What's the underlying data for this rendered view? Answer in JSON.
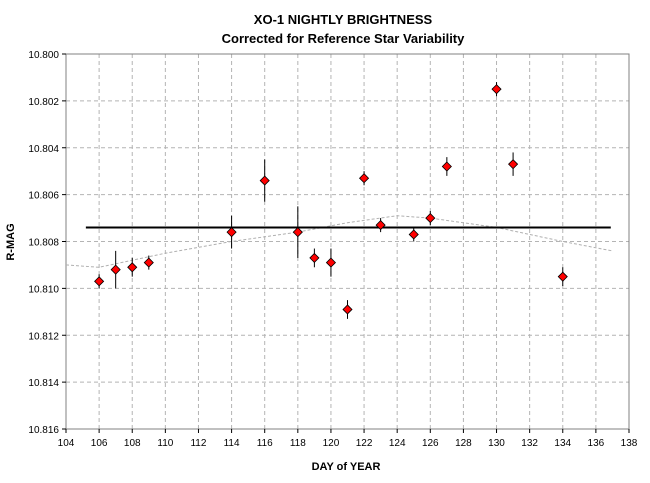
{
  "chart_data": {
    "type": "scatter",
    "title": "XO-1 NIGHTLY BRIGHTNESS",
    "subtitle": "Corrected for Reference Star Variability",
    "xlabel": "DAY of YEAR",
    "ylabel": "R-MAG",
    "xlim": [
      104,
      138
    ],
    "ylim": [
      10.8,
      10.816
    ],
    "y_inverted": true,
    "x_ticks": [
      "104",
      "106",
      "108",
      "110",
      "112",
      "114",
      "116",
      "118",
      "120",
      "122",
      "124",
      "126",
      "128",
      "130",
      "132",
      "134",
      "136",
      "138"
    ],
    "y_ticks": [
      "10.800",
      "10.802",
      "10.804",
      "10.806",
      "10.808",
      "10.810",
      "10.812",
      "10.814",
      "10.816"
    ],
    "grid": true,
    "series": [
      {
        "marker": "diamond",
        "color": "#ff0000",
        "points": [
          {
            "x": 106,
            "y": 10.8097,
            "err": 0.0003
          },
          {
            "x": 107,
            "y": 10.8092,
            "err": 0.0008
          },
          {
            "x": 108,
            "y": 10.8091,
            "err": 0.0004
          },
          {
            "x": 109,
            "y": 10.8089,
            "err": 0.0003
          },
          {
            "x": 114,
            "y": 10.8076,
            "err": 0.0007
          },
          {
            "x": 116,
            "y": 10.8054,
            "err": 0.0009
          },
          {
            "x": 118,
            "y": 10.8076,
            "err": 0.0011
          },
          {
            "x": 119,
            "y": 10.8087,
            "err": 0.0004
          },
          {
            "x": 120,
            "y": 10.8089,
            "err": 0.0006
          },
          {
            "x": 121,
            "y": 10.8109,
            "err": 0.0004
          },
          {
            "x": 122,
            "y": 10.8053,
            "err": 0.0003
          },
          {
            "x": 123,
            "y": 10.8073,
            "err": 0.0003
          },
          {
            "x": 125,
            "y": 10.8077,
            "err": 0.0003
          },
          {
            "x": 126,
            "y": 10.807,
            "err": 0.0003
          },
          {
            "x": 127,
            "y": 10.8048,
            "err": 0.0004
          },
          {
            "x": 130,
            "y": 10.8015,
            "err": 0.0003
          },
          {
            "x": 131,
            "y": 10.8047,
            "err": 0.0005
          },
          {
            "x": 134,
            "y": 10.8095,
            "err": 0.0004
          }
        ]
      }
    ],
    "mean_line": {
      "x": [
        105.2,
        136.9
      ],
      "y": 10.8074,
      "color": "#000000"
    },
    "trend_line": {
      "color": "#b0b0b0",
      "points": [
        {
          "x": 104,
          "y": 10.809
        },
        {
          "x": 106,
          "y": 10.8091
        },
        {
          "x": 110,
          "y": 10.8085
        },
        {
          "x": 114,
          "y": 10.808
        },
        {
          "x": 118,
          "y": 10.8076
        },
        {
          "x": 121,
          "y": 10.8072
        },
        {
          "x": 124,
          "y": 10.8069
        },
        {
          "x": 126,
          "y": 10.807
        },
        {
          "x": 130,
          "y": 10.8074
        },
        {
          "x": 134,
          "y": 10.808
        },
        {
          "x": 137,
          "y": 10.8084
        }
      ]
    }
  }
}
